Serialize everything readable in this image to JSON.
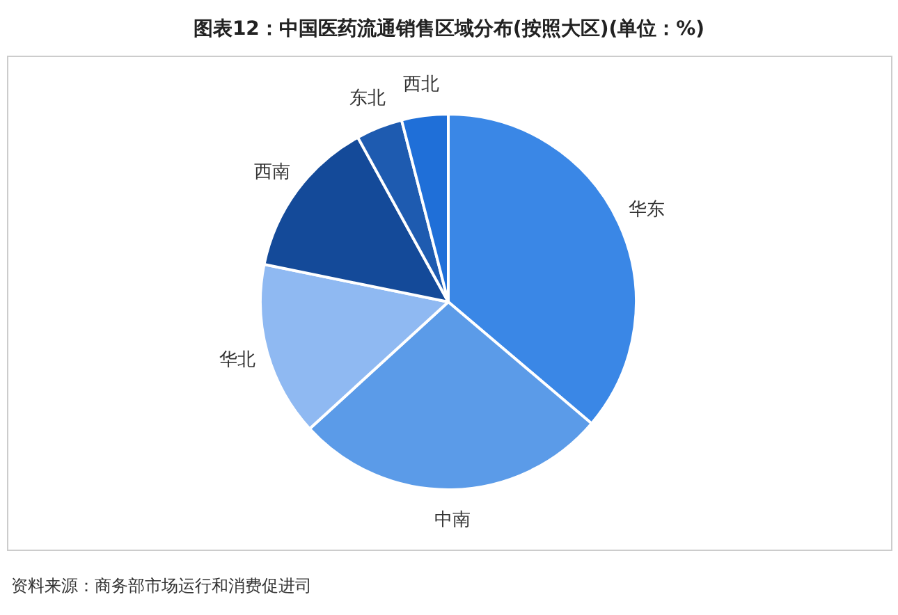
{
  "chart_data": {
    "type": "pie",
    "title": "图表12：中国医药流通销售区域分布(按照大区)(单位：%)",
    "categories": [
      "华东",
      "中南",
      "华北",
      "西南",
      "东北",
      "西北"
    ],
    "values": [
      36.2,
      27,
      15,
      13.8,
      4,
      4
    ],
    "colors": [
      "#3a87e6",
      "#5b9be8",
      "#8fb9f2",
      "#144a99",
      "#1e5bb0",
      "#1f6fd8"
    ],
    "legend": false,
    "annotations": [
      "资料来源：商务部市场运行和消费促进司"
    ]
  }
}
